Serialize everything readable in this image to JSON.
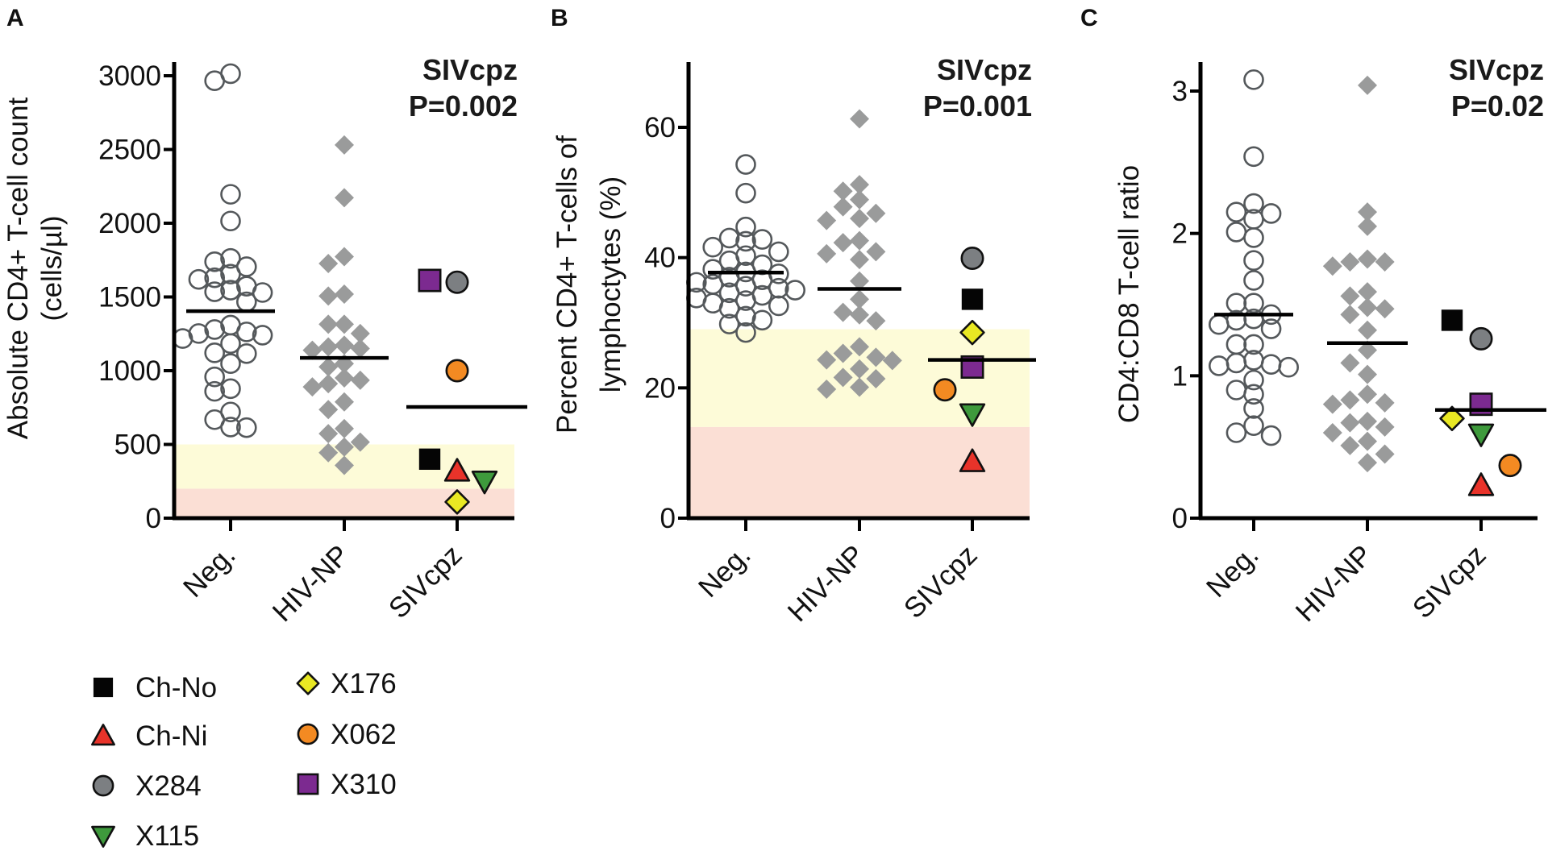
{
  "figure": {
    "legend": {
      "items": [
        {
          "label": "Ch-No",
          "shape": "square",
          "fill": "#050505"
        },
        {
          "label": "Ch-Ni",
          "shape": "triangle-up",
          "fill": "#E8332A"
        },
        {
          "label": "X284",
          "shape": "circle",
          "fill": "#7C7F82"
        },
        {
          "label": "X115",
          "shape": "triangle-down",
          "fill": "#3E9A3C"
        },
        {
          "label": "X176",
          "shape": "diamond",
          "fill": "#E9E823"
        },
        {
          "label": "X062",
          "shape": "circle",
          "fill": "#F38A22"
        },
        {
          "label": "X310",
          "shape": "square",
          "fill": "#7C2A90"
        }
      ]
    },
    "colors": {
      "neg_stroke": "#54585B",
      "hivnp_fill": "#9A9B9B",
      "band_yellow": "#FDFBD8",
      "band_pink": "#FBDFD5",
      "axis": "#000000"
    }
  },
  "chart_data": [
    {
      "panel": "A",
      "type": "scatter",
      "subtype": "dot-plot with group means",
      "ylabel_lines": [
        "Absolute CD4+ T-cell count",
        "(cells/µl)"
      ],
      "categories": [
        "Neg.",
        "HIV-NP",
        "SIVcpz"
      ],
      "ylim": [
        0,
        3000
      ],
      "yticks": [
        0,
        500,
        1000,
        1500,
        2000,
        2500,
        3000
      ],
      "annotation": [
        "SIVcpz",
        "P=0.002"
      ],
      "bands": [
        {
          "from": 0,
          "to": 200,
          "color": "pink"
        },
        {
          "from": 200,
          "to": 500,
          "color": "yellow"
        }
      ],
      "series": [
        {
          "name": "Neg.",
          "marker": "open-circle",
          "values": [
            3014,
            2966,
            2196,
            2015,
            1761,
            1739,
            1705,
            1655,
            1630,
            1619,
            1573,
            1546,
            1535,
            1530,
            1467,
            1309,
            1279,
            1263,
            1252,
            1241,
            1218,
            1184,
            1121,
            1116,
            1048,
            958,
            878,
            860,
            720,
            668,
            618,
            614
          ],
          "mean": 1404
        },
        {
          "name": "HIV-NP",
          "marker": "grey-diamond",
          "values": [
            2531,
            2173,
            1773,
            1727,
            1519,
            1506,
            1315,
            1315,
            1252,
            1173,
            1161,
            1150,
            1139,
            1048,
            1026,
            951,
            935,
            912,
            890,
            788,
            736,
            607,
            573,
            516,
            482,
            444,
            358
          ],
          "mean": 1087
        },
        {
          "name": "SIVcpz",
          "marker": "individual",
          "points": [
            {
              "id": "X310",
              "value": 1612,
              "offset": -1
            },
            {
              "id": "X284",
              "value": 1600,
              "offset": 0
            },
            {
              "id": "X062",
              "value": 1000,
              "offset": 0
            },
            {
              "id": "Ch-No",
              "value": 400,
              "offset": -1
            },
            {
              "id": "Ch-Ni",
              "value": 320,
              "offset": 0
            },
            {
              "id": "X115",
              "value": 250,
              "offset": 1
            },
            {
              "id": "X176",
              "value": 110,
              "offset": 0
            }
          ],
          "mean": 754
        }
      ]
    },
    {
      "panel": "B",
      "type": "scatter",
      "subtype": "dot-plot with group means",
      "ylabel_lines": [
        "Percent CD4+ T-cells of",
        "lymphoctytes (%)"
      ],
      "categories": [
        "Neg.",
        "HIV-NP",
        "SIVcpz"
      ],
      "ylim": [
        0,
        70
      ],
      "yticks": [
        0,
        20,
        40,
        60
      ],
      "annotation": [
        "SIVcpz",
        "P=0.001"
      ],
      "bands": [
        {
          "from": 0,
          "to": 14,
          "color": "pink"
        },
        {
          "from": 14,
          "to": 29,
          "color": "yellow"
        }
      ],
      "series": [
        {
          "name": "Neg.",
          "marker": "open-circle",
          "values": [
            54.3,
            49.9,
            44.7,
            43.0,
            42.8,
            42.5,
            41.6,
            40.9,
            40.3,
            39.5,
            38.9,
            38.2,
            37.8,
            37.5,
            37.0,
            36.6,
            36.2,
            35.9,
            35.6,
            35.3,
            35.0,
            34.6,
            34.2,
            33.8,
            33.4,
            33.0,
            32.6,
            32.2,
            31.0,
            30.4,
            29.8,
            28.5
          ],
          "mean": 37.7
        },
        {
          "name": "HIV-NP",
          "marker": "grey-diamond",
          "values": [
            61.3,
            51.2,
            50.2,
            48.9,
            47.8,
            46.8,
            46.0,
            45.7,
            42.6,
            42.3,
            40.9,
            40.6,
            39.7,
            36.4,
            33.6,
            31.6,
            31.2,
            30.3,
            26.3,
            25.3,
            24.7,
            24.3,
            24.2,
            22.9,
            21.6,
            21.4,
            20.1,
            19.8
          ],
          "mean": 35.2
        },
        {
          "name": "SIVcpz",
          "marker": "individual",
          "points": [
            {
              "id": "X284",
              "value": 39.9,
              "offset": 0
            },
            {
              "id": "Ch-No",
              "value": 33.6,
              "offset": 0
            },
            {
              "id": "X176",
              "value": 28.5,
              "offset": 0
            },
            {
              "id": "X310",
              "value": 23.2,
              "offset": 0
            },
            {
              "id": "X062",
              "value": 19.7,
              "offset": -1
            },
            {
              "id": "X115",
              "value": 16.0,
              "offset": 0
            },
            {
              "id": "Ch-Ni",
              "value": 8.7,
              "offset": 0
            }
          ],
          "mean": 24.3
        }
      ]
    },
    {
      "panel": "C",
      "type": "scatter",
      "subtype": "dot-plot with group means",
      "ylabel_lines": [
        "CD4:CD8 T-cell ratio"
      ],
      "categories": [
        "Neg.",
        "HIV-NP",
        "SIVcpz"
      ],
      "ylim": [
        0,
        3.2
      ],
      "yticks": [
        0,
        1,
        2,
        3
      ],
      "annotation": [
        "SIVcpz",
        "P=0.02"
      ],
      "bands": [],
      "series": [
        {
          "name": "Neg.",
          "marker": "open-circle",
          "values": [
            3.08,
            2.54,
            2.21,
            2.15,
            2.14,
            2.1,
            2.01,
            1.97,
            1.81,
            1.67,
            1.51,
            1.51,
            1.43,
            1.4,
            1.39,
            1.36,
            1.33,
            1.22,
            1.22,
            1.11,
            1.09,
            1.08,
            1.07,
            1.06,
            0.97,
            0.9,
            0.87,
            0.77,
            0.65,
            0.6,
            0.58
          ],
          "mean": 1.43
        },
        {
          "name": "HIV-NP",
          "marker": "grey-diamond",
          "values": [
            3.04,
            2.15,
            2.05,
            1.82,
            1.8,
            1.8,
            1.77,
            1.59,
            1.56,
            1.48,
            1.47,
            1.43,
            1.32,
            1.18,
            1.09,
            1.01,
            0.87,
            0.83,
            0.81,
            0.8,
            0.68,
            0.67,
            0.64,
            0.6,
            0.54,
            0.51,
            0.45,
            0.39
          ],
          "mean": 1.23
        },
        {
          "name": "SIVcpz",
          "marker": "individual",
          "points": [
            {
              "id": "Ch-No",
              "value": 1.39,
              "offset": -1
            },
            {
              "id": "X284",
              "value": 1.26,
              "offset": 0
            },
            {
              "id": "X310",
              "value": 0.8,
              "offset": 0
            },
            {
              "id": "X176",
              "value": 0.7,
              "offset": -1
            },
            {
              "id": "X115",
              "value": 0.59,
              "offset": 0
            },
            {
              "id": "X062",
              "value": 0.37,
              "offset": 1
            },
            {
              "id": "Ch-Ni",
              "value": 0.23,
              "offset": 0
            }
          ],
          "mean": 0.76
        }
      ]
    }
  ]
}
